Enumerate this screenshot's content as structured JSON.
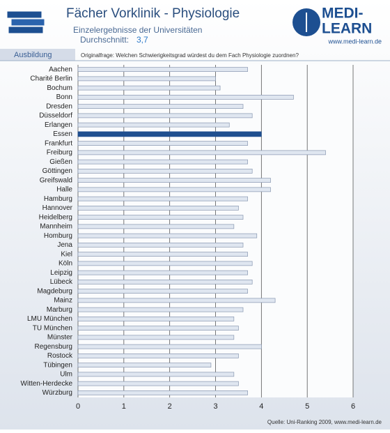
{
  "chart_data": {
    "type": "bar",
    "orientation": "horizontal",
    "title": "Fächer Vorklinik - Physiologie",
    "subtitle": "Einzelergebnisse der Universitäten",
    "average_label": "Durchschnitt:",
    "average": "3,7",
    "section": "Ausbildung",
    "question": "Originalfrage: Welchen Schwierigkeitsgrad würdest du dem Fach Physiologie zuordnen?",
    "logo": {
      "top": "MEDI-",
      "bottom": "LEARN",
      "url": "www.medi-learn.de"
    },
    "source": "Quelle: Uni-Ranking 2009, www.medi-learn.de",
    "categories": [
      "Aachen",
      "Charité Berlin",
      "Bochum",
      "Bonn",
      "Dresden",
      "Düsseldorf",
      "Erlangen",
      "Essen",
      "Frankfurt",
      "Freiburg",
      "Gießen",
      "Göttingen",
      "Greifswald",
      "Halle",
      "Hamburg",
      "Hannover",
      "Heidelberg",
      "Mannheim",
      "Homburg",
      "Jena",
      "Kiel",
      "Köln",
      "Leipzig",
      "Lübeck",
      "Magdeburg",
      "Mainz",
      "Marburg",
      "LMU München",
      "TU München",
      "Münster",
      "Regensburg",
      "Rostock",
      "Tübingen",
      "Ulm",
      "Witten-Herdecke",
      "Würzburg"
    ],
    "values": [
      3.7,
      3.0,
      3.1,
      4.7,
      3.6,
      3.8,
      3.3,
      4.0,
      3.7,
      5.4,
      3.7,
      3.8,
      4.2,
      4.2,
      3.7,
      3.5,
      3.6,
      3.4,
      3.9,
      3.6,
      3.7,
      3.8,
      3.7,
      3.8,
      3.7,
      4.3,
      3.6,
      3.4,
      3.5,
      3.4,
      4.0,
      3.5,
      2.9,
      3.4,
      3.5,
      3.7
    ],
    "color": "#dfe6f0",
    "highlight_index": 7,
    "highlight_color": "#1f4f8f",
    "xlim": [
      0,
      6
    ],
    "xticks": [
      0,
      1,
      2,
      3,
      4,
      5,
      6
    ],
    "grid": true
  }
}
